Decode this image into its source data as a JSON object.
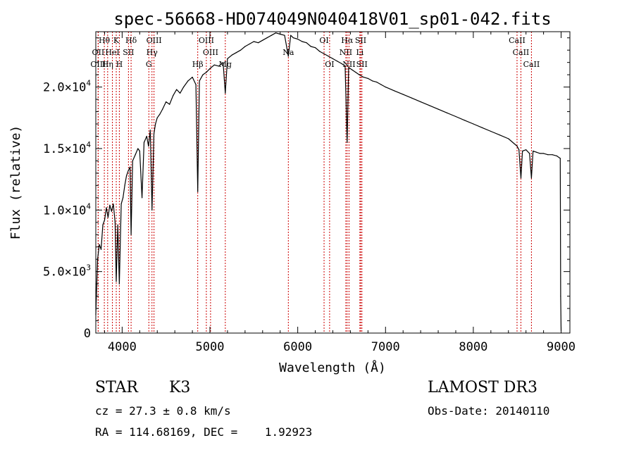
{
  "chart_data": {
    "type": "line",
    "title": "spec-56668-HD074049N040418V01_sp01-042.fits",
    "xlabel": "Wavelength (Å)",
    "ylabel": "Flux (relative)",
    "xlim": [
      3700,
      9100
    ],
    "ylim": [
      0,
      24500
    ],
    "x_ticks": [
      4000,
      5000,
      6000,
      7000,
      8000,
      9000
    ],
    "x_tick_labels": [
      "4000",
      "5000",
      "6000",
      "7000",
      "8000",
      "9000"
    ],
    "y_ticks": [
      0,
      5000,
      10000,
      15000,
      20000
    ],
    "y_tick_labels": [
      {
        "mantissa": "0",
        "exp": ""
      },
      {
        "mantissa": "5.0×10",
        "exp": "3"
      },
      {
        "mantissa": "1.0×10",
        "exp": "4"
      },
      {
        "mantissa": "1.5×10",
        "exp": "4"
      },
      {
        "mantissa": "2.0×10",
        "exp": "4"
      }
    ],
    "series": [
      {
        "name": "flux",
        "x": [
          3700,
          3720,
          3740,
          3760,
          3780,
          3800,
          3820,
          3840,
          3860,
          3880,
          3900,
          3920,
          3933,
          3950,
          3968,
          3990,
          4010,
          4030,
          4050,
          4070,
          4090,
          4102,
          4120,
          4150,
          4180,
          4200,
          4226,
          4250,
          4280,
          4300,
          4320,
          4340,
          4362,
          4380,
          4400,
          4430,
          4460,
          4500,
          4540,
          4580,
          4620,
          4660,
          4700,
          4750,
          4800,
          4840,
          4861,
          4880,
          4920,
          4960,
          5000,
          5050,
          5100,
          5150,
          5175,
          5200,
          5250,
          5300,
          5350,
          5400,
          5450,
          5500,
          5550,
          5600,
          5650,
          5700,
          5750,
          5800,
          5850,
          5893,
          5920,
          5950,
          6000,
          6050,
          6100,
          6150,
          6200,
          6250,
          6300,
          6350,
          6400,
          6450,
          6500,
          6540,
          6563,
          6580,
          6620,
          6660,
          6700,
          6750,
          6800,
          6850,
          6900,
          6950,
          7000,
          7100,
          7200,
          7300,
          7400,
          7500,
          7600,
          7700,
          7800,
          7900,
          8000,
          8100,
          8200,
          8300,
          8400,
          8498,
          8520,
          8542,
          8560,
          8600,
          8640,
          8662,
          8680,
          8720,
          8760,
          8800,
          8850,
          8900,
          8950,
          8990,
          8995,
          9000
        ],
        "y": [
          1500,
          6000,
          7200,
          6800,
          8800,
          9200,
          10200,
          9400,
          10400,
          9900,
          10500,
          9000,
          4200,
          8800,
          4000,
          10500,
          11000,
          12000,
          12800,
          13200,
          13500,
          8000,
          14000,
          14500,
          15000,
          14800,
          11000,
          15500,
          16000,
          15200,
          16500,
          10000,
          16200,
          17000,
          17500,
          17800,
          18200,
          18800,
          18600,
          19300,
          19800,
          19500,
          20000,
          20500,
          20800,
          20200,
          11500,
          20500,
          21000,
          21200,
          21500,
          21800,
          21700,
          22000,
          19500,
          22300,
          22600,
          22800,
          23000,
          23300,
          23500,
          23700,
          23600,
          23800,
          24000,
          24200,
          24400,
          24300,
          24200,
          22500,
          24200,
          24000,
          23900,
          23700,
          23600,
          23300,
          23200,
          22900,
          22700,
          22500,
          22300,
          22100,
          21900,
          21700,
          15500,
          21600,
          21400,
          21200,
          21000,
          20800,
          20700,
          20500,
          20400,
          20200,
          20000,
          19700,
          19400,
          19100,
          18800,
          18500,
          18200,
          17900,
          17600,
          17300,
          17000,
          16700,
          16400,
          16100,
          15800,
          15200,
          14900,
          12600,
          14800,
          14900,
          14600,
          12600,
          14800,
          14700,
          14600,
          14600,
          14500,
          14500,
          14400,
          14200,
          3000,
          200
        ]
      }
    ],
    "line_markers": [
      {
        "label": "Hθ",
        "wavelength": 3797,
        "row": 0
      },
      {
        "label": "OII",
        "wavelength": 3727,
        "row": 1
      },
      {
        "label": "OIII",
        "wavelength": 3727,
        "row": 2
      },
      {
        "label": "K",
        "wavelength": 3933,
        "row": 0
      },
      {
        "label": "HeI",
        "wavelength": 3889,
        "row": 1
      },
      {
        "label": "Hη",
        "wavelength": 3835,
        "row": 2
      },
      {
        "label": "H",
        "wavelength": 3968,
        "row": 2
      },
      {
        "label": "Hδ",
        "wavelength": 4102,
        "row": 0
      },
      {
        "label": "SII",
        "wavelength": 4072,
        "row": 1
      },
      {
        "label": "OIII",
        "wavelength": 4363,
        "row": 0
      },
      {
        "label": "Hγ",
        "wavelength": 4340,
        "row": 1
      },
      {
        "label": "G",
        "wavelength": 4304,
        "row": 2
      },
      {
        "label": "Hβ",
        "wavelength": 4861,
        "row": 2
      },
      {
        "label": "OIII",
        "wavelength": 4959,
        "row": 0
      },
      {
        "label": "OIII",
        "wavelength": 5007,
        "row": 1
      },
      {
        "label": "Mg",
        "wavelength": 5175,
        "row": 2
      },
      {
        "label": "Na",
        "wavelength": 5893,
        "row": 1
      },
      {
        "label": "OI",
        "wavelength": 6300,
        "row": 0
      },
      {
        "label": "OI",
        "wavelength": 6363,
        "row": 2
      },
      {
        "label": "Hα",
        "wavelength": 6563,
        "row": 0
      },
      {
        "label": "NII",
        "wavelength": 6548,
        "row": 1
      },
      {
        "label": "NII",
        "wavelength": 6584,
        "row": 2
      },
      {
        "label": "SII",
        "wavelength": 6717,
        "row": 0
      },
      {
        "label": "Li",
        "wavelength": 6708,
        "row": 1
      },
      {
        "label": "SII",
        "wavelength": 6731,
        "row": 2
      },
      {
        "label": "CaII",
        "wavelength": 8498,
        "row": 0
      },
      {
        "label": "CaII",
        "wavelength": 8542,
        "row": 1
      },
      {
        "label": "CaII",
        "wavelength": 8662,
        "row": 2
      }
    ],
    "line_marker_color": "#cc0000"
  },
  "info": {
    "class_label": "STAR",
    "subclass": "K3",
    "redshift": "cz = 27.3 ± 0.8 km/s",
    "coords": "RA = 114.68169, DEC =    1.92923",
    "survey": "LAMOST DR3",
    "obs_date": "Obs-Date: 20140110"
  }
}
